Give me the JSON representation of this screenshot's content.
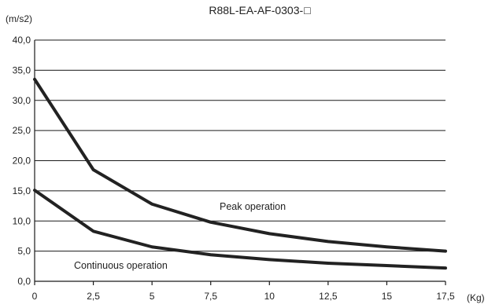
{
  "chart_data": {
    "type": "line",
    "title": "R88L-EA-AF-0303-",
    "title_symbol": "□",
    "xlabel": "(Kg)",
    "ylabel": "(m/s2)",
    "xlim": [
      0,
      17.5
    ],
    "ylim": [
      0,
      40
    ],
    "grid": true,
    "x_ticks": [
      "0",
      "2,5",
      "5",
      "7,5",
      "10",
      "12,5",
      "15",
      "17,5"
    ],
    "y_ticks": [
      "0,0",
      "5,0",
      "10,0",
      "15,0",
      "20,0",
      "25,0",
      "30,0",
      "35,0",
      "40,0"
    ],
    "x": [
      0,
      2.5,
      5,
      7.5,
      10,
      12.5,
      15,
      17.5
    ],
    "series": [
      {
        "name": "Peak operation",
        "values": [
          33.5,
          18.5,
          12.8,
          9.8,
          7.9,
          6.6,
          5.7,
          5.0
        ]
      },
      {
        "name": "Continuous operation",
        "values": [
          15.1,
          8.3,
          5.7,
          4.4,
          3.6,
          3.0,
          2.6,
          2.2
        ]
      }
    ],
    "annotations": [
      "Peak operation",
      "Continuous operation"
    ]
  }
}
